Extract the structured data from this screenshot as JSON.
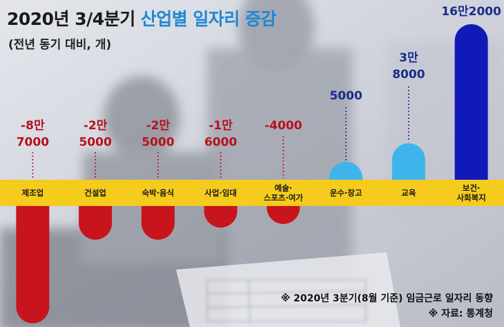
{
  "header": {
    "title_main": "2020년 3/4분기",
    "title_accent": "산업별 일자리 증감",
    "subtitle": "(전년 동기 대비, 개)"
  },
  "footnotes": {
    "note": "※ 2020년 3분기(8월 기준) 임금근로 일자리 동향",
    "source": "※ 자료: 통계청"
  },
  "colors": {
    "negative": "#c8141c",
    "positive_light": "#3fb4ea",
    "positive_dark": "#1119b8",
    "band": "#f5cb1e",
    "negative_label": "#b5121b",
    "positive_label": "#1a2c8a"
  },
  "chart_data": {
    "type": "bar",
    "categories": [
      [
        "제조업"
      ],
      [
        "건설업"
      ],
      [
        "숙박·음식"
      ],
      [
        "사업·임대"
      ],
      [
        "예술·",
        "스포츠·여가"
      ],
      [
        "운수·창고"
      ],
      [
        "교육"
      ],
      [
        "보건·",
        "사회복지"
      ]
    ],
    "values": [
      -87000,
      -25000,
      -25000,
      -16000,
      -4000,
      5000,
      38000,
      162000
    ],
    "value_labels": [
      [
        "-8만",
        "7000"
      ],
      [
        "-2만",
        "5000"
      ],
      [
        "-2만",
        "5000"
      ],
      [
        "-1만",
        "6000"
      ],
      [
        "-4000"
      ],
      [
        "5000"
      ],
      [
        "3만",
        "8000"
      ],
      [
        "16만2000"
      ]
    ],
    "title": "2020년 3/4분기 산업별 일자리 증감",
    "ylabel": "(전년 동기 대비, 개)"
  }
}
